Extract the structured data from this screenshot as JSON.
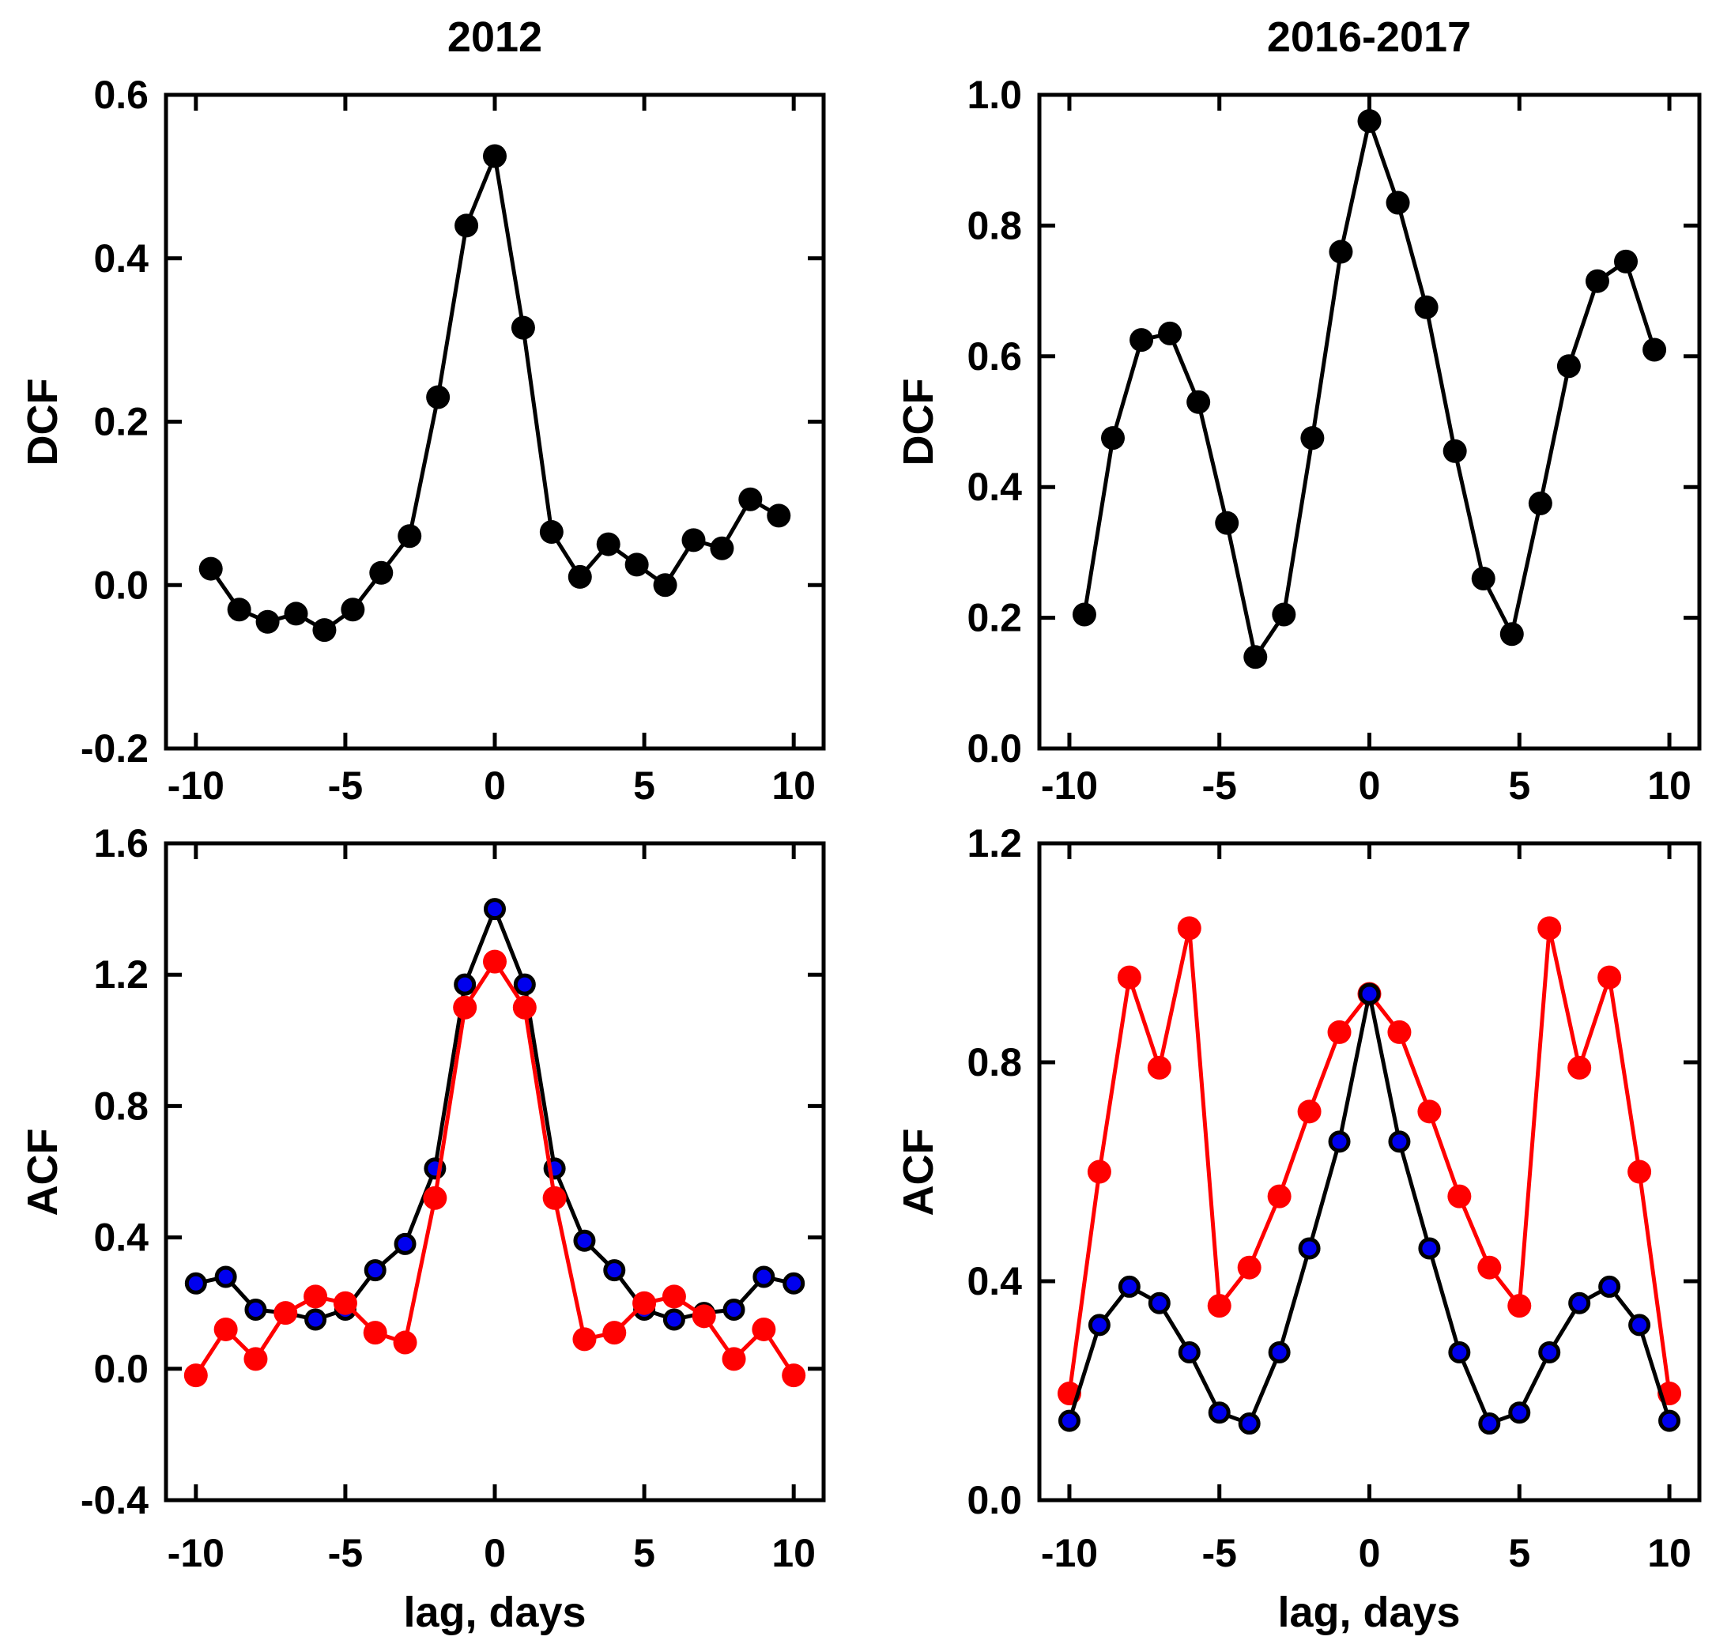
{
  "figure": {
    "background": "#ffffff",
    "frame_color": "#000000",
    "text_color": "#000000",
    "accent_colors": {
      "black": "#000000",
      "red": "#ff0000",
      "blue": "#0000ee"
    }
  },
  "chart_data": [
    {
      "id": "dcf-2012",
      "type": "line",
      "title": "2012",
      "xlabel": "",
      "ylabel": "DCF",
      "xlim": [
        -11,
        11
      ],
      "ylim": [
        -0.2,
        0.6
      ],
      "xticks": [
        -10,
        -5,
        0,
        5,
        10
      ],
      "xtick_labels": [
        "-10",
        "-5",
        "0",
        "5",
        "10"
      ],
      "yticks": [
        -0.2,
        0.0,
        0.2,
        0.4,
        0.6
      ],
      "ytick_labels": [
        "-0.2",
        "0.0",
        "0.2",
        "0.4",
        "0.6"
      ],
      "grid": false,
      "legend": null,
      "series": [
        {
          "name": "dcf-black",
          "line_color": "#000000",
          "marker_fill": "#000000",
          "marker_edge": "none",
          "marker_edge_width": 0,
          "marker_radius": 15,
          "x": [
            -9.5,
            -8.55,
            -7.6,
            -6.65,
            -5.7,
            -4.75,
            -3.8,
            -2.85,
            -1.9,
            -0.95,
            0,
            0.95,
            1.9,
            2.85,
            3.8,
            4.75,
            5.7,
            6.65,
            7.6,
            8.55,
            9.5
          ],
          "y": [
            0.02,
            -0.03,
            -0.045,
            -0.035,
            -0.055,
            -0.03,
            0.015,
            0.06,
            0.23,
            0.44,
            0.525,
            0.315,
            0.065,
            0.01,
            0.05,
            0.025,
            0.0,
            0.055,
            0.045,
            0.105,
            0.085
          ]
        }
      ]
    },
    {
      "id": "dcf-2016-2017",
      "type": "line",
      "title": "2016-2017",
      "xlabel": "",
      "ylabel": "DCF",
      "xlim": [
        -11,
        11
      ],
      "ylim": [
        0.0,
        1.0
      ],
      "xticks": [
        -10,
        -5,
        0,
        5,
        10
      ],
      "xtick_labels": [
        "-10",
        "-5",
        "0",
        "5",
        "10"
      ],
      "yticks": [
        0.0,
        0.2,
        0.4,
        0.6,
        0.8,
        1.0
      ],
      "ytick_labels": [
        "0.0",
        "0.2",
        "0.4",
        "0.6",
        "0.8",
        "1.0"
      ],
      "grid": false,
      "legend": null,
      "series": [
        {
          "name": "dcf-black",
          "line_color": "#000000",
          "marker_fill": "#000000",
          "marker_edge": "none",
          "marker_edge_width": 0,
          "marker_radius": 15,
          "x": [
            -9.5,
            -8.55,
            -7.6,
            -6.65,
            -5.7,
            -4.75,
            -3.8,
            -2.85,
            -1.9,
            -0.95,
            0,
            0.95,
            1.9,
            2.85,
            3.8,
            4.75,
            5.7,
            6.65,
            7.6,
            8.55,
            9.5
          ],
          "y": [
            0.205,
            0.475,
            0.625,
            0.635,
            0.53,
            0.345,
            0.14,
            0.205,
            0.475,
            0.76,
            0.96,
            0.835,
            0.675,
            0.455,
            0.26,
            0.175,
            0.375,
            0.585,
            0.715,
            0.745,
            0.61
          ]
        }
      ]
    },
    {
      "id": "acf-2012",
      "type": "line",
      "title": "",
      "xlabel": "lag, days",
      "ylabel": "ACF",
      "xlim": [
        -11,
        11
      ],
      "ylim": [
        -0.4,
        1.6
      ],
      "xticks": [
        -10,
        -5,
        0,
        5,
        10
      ],
      "xtick_labels": [
        "-10",
        "-5",
        "0",
        "5",
        "10"
      ],
      "yticks": [
        -0.4,
        0.0,
        0.4,
        0.8,
        1.2,
        1.6
      ],
      "ytick_labels": [
        "-0.4",
        "0.0",
        "0.4",
        "0.8",
        "1.2",
        "1.6"
      ],
      "grid": false,
      "legend": null,
      "series": [
        {
          "name": "acf-blue",
          "line_color": "#000000",
          "marker_fill": "#0000ee",
          "marker_edge": "#000000",
          "marker_edge_width": 5,
          "marker_radius": 11.5,
          "x": [
            -10,
            -9,
            -8,
            -7,
            -6,
            -5,
            -4,
            -3,
            -2,
            -1,
            0,
            1,
            2,
            3,
            4,
            5,
            6,
            7,
            8,
            9,
            10
          ],
          "y": [
            0.26,
            0.28,
            0.18,
            0.17,
            0.15,
            0.18,
            0.3,
            0.38,
            0.61,
            1.17,
            1.4,
            1.17,
            0.61,
            0.39,
            0.3,
            0.18,
            0.15,
            0.17,
            0.18,
            0.28,
            0.26
          ]
        },
        {
          "name": "acf-red",
          "line_color": "#ff0000",
          "marker_fill": "#ff0000",
          "marker_edge": "none",
          "marker_edge_width": 0,
          "marker_radius": 15,
          "x": [
            -10,
            -9,
            -8,
            -7,
            -6,
            -5,
            -4,
            -3,
            -2,
            -1,
            0,
            1,
            2,
            3,
            4,
            5,
            6,
            7,
            8,
            9,
            10
          ],
          "y": [
            -0.02,
            0.12,
            0.03,
            0.17,
            0.22,
            0.2,
            0.11,
            0.08,
            0.52,
            1.1,
            1.24,
            1.1,
            0.52,
            0.09,
            0.11,
            0.2,
            0.22,
            0.16,
            0.03,
            0.12,
            -0.02
          ]
        }
      ]
    },
    {
      "id": "acf-2016-2017",
      "type": "line",
      "title": "",
      "xlabel": "lag, days",
      "ylabel": "ACF",
      "xlim": [
        -11,
        11
      ],
      "ylim": [
        0.0,
        1.2
      ],
      "xticks": [
        -10,
        -5,
        0,
        5,
        10
      ],
      "xtick_labels": [
        "-10",
        "-5",
        "0",
        "5",
        "10"
      ],
      "yticks": [
        0.0,
        0.4,
        0.8,
        1.2
      ],
      "ytick_labels": [
        "0.0",
        "0.4",
        "0.8",
        "1.2"
      ],
      "grid": false,
      "legend": null,
      "series": [
        {
          "name": "acf-red",
          "line_color": "#ff0000",
          "marker_fill": "#ff0000",
          "marker_edge": "none",
          "marker_edge_width": 0,
          "marker_radius": 15,
          "x": [
            -10,
            -9,
            -8,
            -7,
            -6,
            -5,
            -4,
            -3,
            -2,
            -1,
            0,
            1,
            2,
            3,
            4,
            5,
            6,
            7,
            8,
            9,
            10
          ],
          "y": [
            0.195,
            0.6,
            0.955,
            0.79,
            1.045,
            0.355,
            0.425,
            0.555,
            0.71,
            0.855,
            0.925,
            0.855,
            0.71,
            0.555,
            0.425,
            0.355,
            1.045,
            0.79,
            0.955,
            0.6,
            0.195
          ]
        },
        {
          "name": "acf-blue",
          "line_color": "#000000",
          "marker_fill": "#0000ee",
          "marker_edge": "#000000",
          "marker_edge_width": 5,
          "marker_radius": 11.5,
          "x": [
            -10,
            -9,
            -8,
            -7,
            -6,
            -5,
            -4,
            -3,
            -2,
            -1,
            0,
            1,
            2,
            3,
            4,
            5,
            6,
            7,
            8,
            9,
            10
          ],
          "y": [
            0.145,
            0.32,
            0.39,
            0.36,
            0.27,
            0.16,
            0.14,
            0.27,
            0.46,
            0.655,
            0.925,
            0.655,
            0.46,
            0.27,
            0.14,
            0.16,
            0.27,
            0.36,
            0.39,
            0.32,
            0.145
          ]
        }
      ]
    }
  ]
}
